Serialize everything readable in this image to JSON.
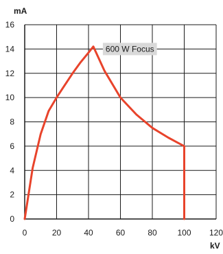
{
  "chart_data": {
    "type": "line",
    "title": "",
    "xlabel": "kV",
    "ylabel": "mA",
    "xlim": [
      0,
      120
    ],
    "ylim": [
      0,
      16
    ],
    "xticks": [
      0,
      20,
      40,
      60,
      80,
      100,
      120
    ],
    "yticks": [
      0,
      2,
      4,
      6,
      8,
      10,
      12,
      14,
      16
    ],
    "grid": true,
    "series": [
      {
        "color": "#e8432b",
        "x": [
          0,
          5,
          10,
          15,
          20,
          25,
          30,
          35,
          40,
          43,
          50,
          60,
          70,
          80,
          90,
          100,
          100
        ],
        "y": [
          0,
          4.2,
          7.0,
          8.9,
          10.0,
          11.0,
          12.0,
          12.9,
          13.7,
          14.2,
          12.2,
          10.0,
          8.6,
          7.5,
          6.7,
          6.0,
          0
        ]
      }
    ],
    "annotation": {
      "text": "600 W Focus"
    }
  }
}
